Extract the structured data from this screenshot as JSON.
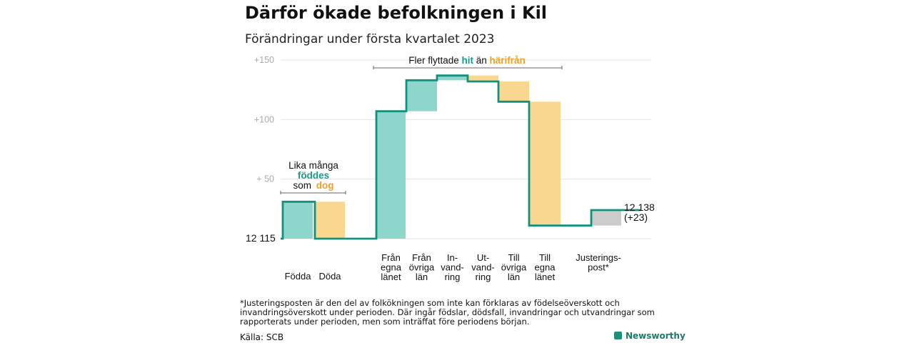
{
  "title": "Därför ökade befolkningen i Kil",
  "subtitle": "Förändringar under första kvartalet 2023",
  "footnote": "*Justeringsposten är den del av folkökningen som inte kan förklaras av födelseöverskott och invandringsöverskott under perioden. Där ingår födslar, dödsfall, invandringar och utvandringar som rapporterats under perioden, men som inträffat före periodens början.",
  "source": "Källa: SCB",
  "brand": "Newsworthy",
  "colors": {
    "increase": "#8ed6cc",
    "decrease": "#fad791",
    "adjust": "#cccccc",
    "line": "#12917e",
    "teal_text": "#1a9a88",
    "orange_text": "#f0a020"
  },
  "annotations": {
    "births_deaths": {
      "line1": "Lika många",
      "word_born": "föddes",
      "word_som": "som",
      "word_died": "dog"
    },
    "migration": {
      "prefix": "Fler flyttade ",
      "word_hit": "hit",
      "middle": " än ",
      "word_harifran": "härifrån"
    }
  },
  "chart_data": {
    "type": "waterfall",
    "title": "Därför ökade befolkningen i Kil",
    "subtitle": "Förändringar under första kvartalet 2023",
    "start_value": 12115,
    "start_label": "12 115",
    "end_value": 12138,
    "end_label": "12 138",
    "end_change_label": "(+23)",
    "ylim": [
      0,
      150
    ],
    "yticks": [
      {
        "value": 50,
        "label": "+ 50"
      },
      {
        "value": 100,
        "label": "+100"
      },
      {
        "value": 150,
        "label": "+150"
      }
    ],
    "grid": true,
    "steps": [
      {
        "label": [
          "Födda"
        ],
        "change": 31
      },
      {
        "label": [
          "Döda"
        ],
        "change": -31
      },
      {
        "label": [
          "Från",
          "egna",
          "länet"
        ],
        "change": 107
      },
      {
        "label": [
          "Från",
          "övriga",
          "län"
        ],
        "change": 26
      },
      {
        "label": [
          "In-",
          "vand-",
          "ring"
        ],
        "change": 4
      },
      {
        "label": [
          "Ut-",
          "vand-",
          "ring"
        ],
        "change": -5
      },
      {
        "label": [
          "Till",
          "övriga",
          "län"
        ],
        "change": -17
      },
      {
        "label": [
          "Till",
          "egna",
          "länet"
        ],
        "change": -104
      },
      {
        "label": [
          "Justerings-",
          "post*"
        ],
        "change": 13,
        "adjustment": true
      }
    ]
  }
}
